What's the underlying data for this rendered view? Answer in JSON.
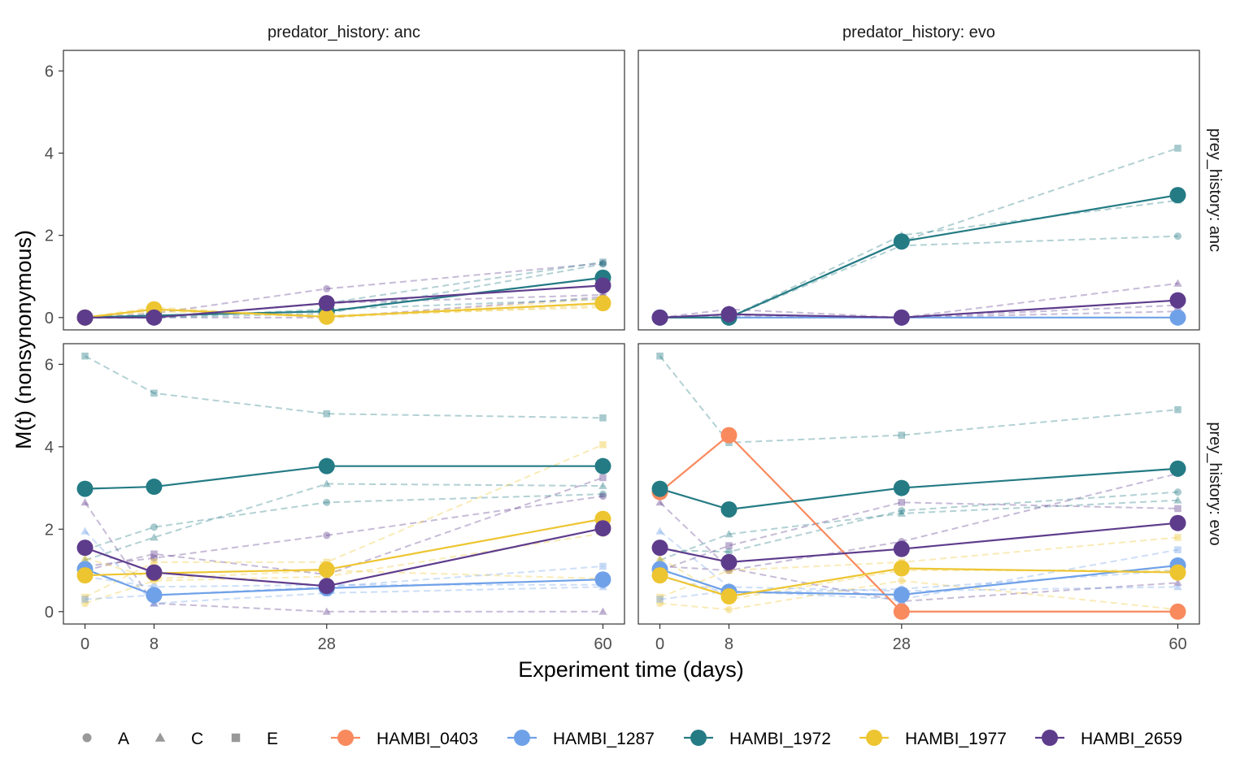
{
  "chart_data": {
    "type": "line",
    "xlabel": "Experiment time (days)",
    "ylabel": "M(t) (nonsynonymous)",
    "x_ticks": [
      0,
      8,
      28,
      60
    ],
    "y_ticks": [
      0,
      2,
      4,
      6
    ],
    "xlim": [
      -2.5,
      62.5
    ],
    "ylim": [
      -0.3,
      6.5
    ],
    "grid": false,
    "legend_position": "bottom",
    "colors": {
      "HAMBI_0403": "#f98a5e",
      "HAMBI_1287": "#6fa1e8",
      "HAMBI_1972": "#247b84",
      "HAMBI_1977": "#edc531",
      "HAMBI_2659": "#5e3c8c",
      "shape_legend_gray": "#999999"
    },
    "legend": {
      "shapes": [
        {
          "label": "A",
          "shape": "circle"
        },
        {
          "label": "C",
          "shape": "triangle"
        },
        {
          "label": "E",
          "shape": "square"
        }
      ],
      "strains": [
        "HAMBI_0403",
        "HAMBI_1287",
        "HAMBI_1972",
        "HAMBI_1977",
        "HAMBI_2659"
      ]
    },
    "panels": [
      {
        "predator_history": "anc",
        "prey_history": "anc",
        "col_label": "predator_history: anc",
        "row_label": "prey_history: anc",
        "mean_series": [
          {
            "strain": "HAMBI_1972",
            "x": [
              0,
              8,
              28,
              60
            ],
            "y": [
              0,
              0.05,
              0.15,
              0.97
            ]
          },
          {
            "strain": "HAMBI_1977",
            "x": [
              0,
              8,
              28,
              60
            ],
            "y": [
              0,
              0.2,
              0.02,
              0.35
            ]
          },
          {
            "strain": "HAMBI_2659",
            "x": [
              0,
              8,
              28,
              60
            ],
            "y": [
              0,
              0,
              0.35,
              0.78
            ]
          }
        ],
        "replicates": [
          {
            "strain": "HAMBI_2659",
            "rep": "A",
            "x": [
              0,
              8,
              28,
              60
            ],
            "y": [
              0,
              0.1,
              0.7,
              1.32
            ]
          },
          {
            "strain": "HAMBI_2659",
            "rep": "C",
            "x": [
              0,
              8,
              28,
              60
            ],
            "y": [
              0,
              0,
              0.35,
              0.55
            ]
          },
          {
            "strain": "HAMBI_2659",
            "rep": "E",
            "x": [
              0,
              8,
              28,
              60
            ],
            "y": [
              0,
              0,
              0,
              0.5
            ]
          },
          {
            "strain": "HAMBI_1972",
            "rep": "A",
            "x": [
              0,
              8,
              28,
              60
            ],
            "y": [
              0,
              0,
              0.1,
              1.3
            ]
          },
          {
            "strain": "HAMBI_1972",
            "rep": "C",
            "x": [
              0,
              8,
              28,
              60
            ],
            "y": [
              0,
              0,
              0.2,
              0.45
            ]
          },
          {
            "strain": "HAMBI_1972",
            "rep": "E",
            "x": [
              0,
              8,
              28,
              60
            ],
            "y": [
              0,
              0,
              0.35,
              1.35
            ]
          },
          {
            "strain": "HAMBI_1977",
            "rep": "A",
            "x": [
              0,
              8,
              28,
              60
            ],
            "y": [
              0,
              0.2,
              0,
              0.3
            ]
          },
          {
            "strain": "HAMBI_1977",
            "rep": "C",
            "x": [
              0,
              8,
              28,
              60
            ],
            "y": [
              0,
              0.15,
              0.05,
              0.25
            ]
          },
          {
            "strain": "HAMBI_1977",
            "rep": "E",
            "x": [
              0,
              8,
              28,
              60
            ],
            "y": [
              0,
              0.25,
              0,
              0.45
            ]
          }
        ]
      },
      {
        "predator_history": "evo",
        "prey_history": "anc",
        "col_label": "predator_history: evo",
        "row_label": "prey_history: anc",
        "mean_series": [
          {
            "strain": "HAMBI_1287",
            "x": [
              0,
              8,
              28,
              60
            ],
            "y": [
              0,
              0,
              0,
              0
            ]
          },
          {
            "strain": "HAMBI_1972",
            "x": [
              0,
              8,
              28,
              60
            ],
            "y": [
              0,
              0,
              1.85,
              2.98
            ]
          },
          {
            "strain": "HAMBI_2659",
            "x": [
              0,
              8,
              28,
              60
            ],
            "y": [
              0,
              0.08,
              0,
              0.42
            ]
          }
        ],
        "replicates": [
          {
            "strain": "HAMBI_1972",
            "rep": "A",
            "x": [
              0,
              8,
              28,
              60
            ],
            "y": [
              0,
              0,
              1.75,
              1.98
            ]
          },
          {
            "strain": "HAMBI_1972",
            "rep": "C",
            "x": [
              0,
              8,
              28,
              60
            ],
            "y": [
              0,
              0,
              2.0,
              2.85
            ]
          },
          {
            "strain": "HAMBI_1972",
            "rep": "E",
            "x": [
              0,
              8,
              28,
              60
            ],
            "y": [
              0,
              0,
              1.85,
              4.12
            ]
          },
          {
            "strain": "HAMBI_2659",
            "rep": "A",
            "x": [
              0,
              8,
              28,
              60
            ],
            "y": [
              0,
              0.05,
              0,
              0.3
            ]
          },
          {
            "strain": "HAMBI_2659",
            "rep": "C",
            "x": [
              0,
              8,
              28,
              60
            ],
            "y": [
              0,
              0.2,
              0,
              0.83
            ]
          },
          {
            "strain": "HAMBI_2659",
            "rep": "E",
            "x": [
              0,
              8,
              28,
              60
            ],
            "y": [
              0,
              0,
              0,
              0.15
            ]
          }
        ]
      },
      {
        "predator_history": "anc",
        "prey_history": "evo",
        "col_label": "predator_history: anc",
        "row_label": "prey_history: evo",
        "mean_series": [
          {
            "strain": "HAMBI_1287",
            "x": [
              0,
              8,
              28,
              60
            ],
            "y": [
              1.03,
              0.4,
              0.57,
              0.78
            ]
          },
          {
            "strain": "HAMBI_1972",
            "x": [
              0,
              8,
              28,
              60
            ],
            "y": [
              2.98,
              3.03,
              3.53,
              3.53
            ]
          },
          {
            "strain": "HAMBI_1977",
            "x": [
              0,
              8,
              28,
              60
            ],
            "y": [
              0.88,
              0.93,
              1.02,
              2.25
            ]
          },
          {
            "strain": "HAMBI_2659",
            "x": [
              0,
              8,
              28,
              60
            ],
            "y": [
              1.55,
              0.95,
              0.62,
              2.02
            ]
          }
        ],
        "replicates": [
          {
            "strain": "HAMBI_1972",
            "rep": "E",
            "x": [
              0,
              8,
              28,
              60
            ],
            "y": [
              6.2,
              5.3,
              4.8,
              4.7
            ]
          },
          {
            "strain": "HAMBI_1972",
            "rep": "C",
            "x": [
              0,
              8,
              28,
              60
            ],
            "y": [
              1.25,
              1.8,
              3.1,
              3.05
            ]
          },
          {
            "strain": "HAMBI_1972",
            "rep": "A",
            "x": [
              0,
              8,
              28,
              60
            ],
            "y": [
              1.5,
              2.05,
              2.65,
              2.85
            ]
          },
          {
            "strain": "HAMBI_2659",
            "rep": "C",
            "x": [
              0,
              8,
              28,
              60
            ],
            "y": [
              2.65,
              0.2,
              0,
              0
            ]
          },
          {
            "strain": "HAMBI_2659",
            "rep": "E",
            "x": [
              0,
              8,
              28,
              60
            ],
            "y": [
              1.0,
              1.4,
              0.9,
              3.25
            ]
          },
          {
            "strain": "HAMBI_2659",
            "rep": "A",
            "x": [
              0,
              8,
              28,
              60
            ],
            "y": [
              1.1,
              1.3,
              1.85,
              2.8
            ]
          },
          {
            "strain": "HAMBI_1977",
            "rep": "E",
            "x": [
              0,
              8,
              28,
              60
            ],
            "y": [
              0.35,
              1.2,
              1.2,
              4.05
            ]
          },
          {
            "strain": "HAMBI_1977",
            "rep": "A",
            "x": [
              0,
              8,
              28,
              60
            ],
            "y": [
              0.2,
              0.75,
              0.85,
              1.9
            ]
          },
          {
            "strain": "HAMBI_1977",
            "rep": "C",
            "x": [
              0,
              8,
              28,
              60
            ],
            "y": [
              1.3,
              0.8,
              1.0,
              0.8
            ]
          },
          {
            "strain": "HAMBI_1287",
            "rep": "C",
            "x": [
              0,
              8,
              28,
              60
            ],
            "y": [
              1.95,
              0.2,
              0.45,
              0.6
            ]
          },
          {
            "strain": "HAMBI_1287",
            "rep": "E",
            "x": [
              0,
              8,
              28,
              60
            ],
            "y": [
              0.3,
              0.4,
              0.6,
              1.1
            ]
          },
          {
            "strain": "HAMBI_1287",
            "rep": "A",
            "x": [
              0,
              8,
              28,
              60
            ],
            "y": [
              0.85,
              0.6,
              0.65,
              0.65
            ]
          }
        ]
      },
      {
        "predator_history": "evo",
        "prey_history": "evo",
        "col_label": "predator_history: evo",
        "row_label": "prey_history: evo",
        "mean_series": [
          {
            "strain": "HAMBI_0403",
            "x": [
              0,
              8,
              28,
              60
            ],
            "y": [
              2.9,
              4.28,
              0,
              0
            ]
          },
          {
            "strain": "HAMBI_1287",
            "x": [
              0,
              8,
              28,
              60
            ],
            "y": [
              1.03,
              0.48,
              0.41,
              1.12
            ]
          },
          {
            "strain": "HAMBI_1972",
            "x": [
              0,
              8,
              28,
              60
            ],
            "y": [
              2.98,
              2.48,
              3.0,
              3.47
            ]
          },
          {
            "strain": "HAMBI_1977",
            "x": [
              0,
              8,
              28,
              60
            ],
            "y": [
              0.88,
              0.37,
              1.05,
              0.95
            ]
          },
          {
            "strain": "HAMBI_2659",
            "x": [
              0,
              8,
              28,
              60
            ],
            "y": [
              1.55,
              1.2,
              1.52,
              2.15
            ]
          }
        ],
        "replicates": [
          {
            "strain": "HAMBI_1972",
            "rep": "E",
            "x": [
              0,
              8,
              28,
              60
            ],
            "y": [
              6.2,
              4.1,
              4.28,
              4.9
            ]
          },
          {
            "strain": "HAMBI_1972",
            "rep": "C",
            "x": [
              0,
              8,
              28,
              60
            ],
            "y": [
              1.25,
              1.88,
              2.38,
              2.7
            ]
          },
          {
            "strain": "HAMBI_1972",
            "rep": "A",
            "x": [
              0,
              8,
              28,
              60
            ],
            "y": [
              1.5,
              1.45,
              2.45,
              2.9
            ]
          },
          {
            "strain": "HAMBI_2659",
            "rep": "C",
            "x": [
              0,
              8,
              28,
              60
            ],
            "y": [
              2.65,
              1.05,
              0.25,
              0.7
            ]
          },
          {
            "strain": "HAMBI_2659",
            "rep": "E",
            "x": [
              0,
              8,
              28,
              60
            ],
            "y": [
              1.0,
              1.6,
              2.65,
              2.5
            ]
          },
          {
            "strain": "HAMBI_2659",
            "rep": "A",
            "x": [
              0,
              8,
              28,
              60
            ],
            "y": [
              1.1,
              1.0,
              1.7,
              3.35
            ]
          },
          {
            "strain": "HAMBI_1977",
            "rep": "E",
            "x": [
              0,
              8,
              28,
              60
            ],
            "y": [
              0.35,
              1.0,
              1.2,
              1.8
            ]
          },
          {
            "strain": "HAMBI_1977",
            "rep": "A",
            "x": [
              0,
              8,
              28,
              60
            ],
            "y": [
              0.2,
              0.05,
              0.75,
              0.05
            ]
          },
          {
            "strain": "HAMBI_1977",
            "rep": "C",
            "x": [
              0,
              8,
              28,
              60
            ],
            "y": [
              1.3,
              0.3,
              1.0,
              1.0
            ]
          },
          {
            "strain": "HAMBI_1287",
            "rep": "C",
            "x": [
              0,
              8,
              28,
              60
            ],
            "y": [
              1.95,
              0.6,
              0.5,
              0.6
            ]
          },
          {
            "strain": "HAMBI_1287",
            "rep": "E",
            "x": [
              0,
              8,
              28,
              60
            ],
            "y": [
              0.3,
              0.5,
              0.3,
              1.5
            ]
          },
          {
            "strain": "HAMBI_1287",
            "rep": "A",
            "x": [
              0,
              8,
              28,
              60
            ],
            "y": [
              0.85,
              0.45,
              0.55,
              1.0
            ]
          }
        ]
      }
    ]
  }
}
